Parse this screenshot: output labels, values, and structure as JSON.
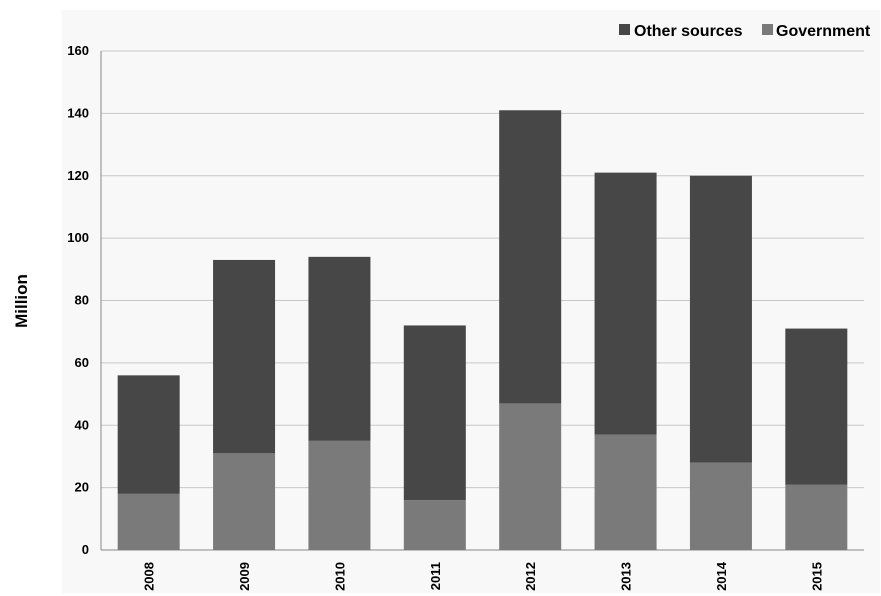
{
  "chart_data": {
    "type": "bar",
    "stacked": true,
    "title": "",
    "xlabel": "",
    "ylabel": "Million",
    "categories": [
      "2008",
      "2009",
      "2010",
      "2011",
      "2012",
      "2013",
      "2014",
      "2015"
    ],
    "series": [
      {
        "name": "Government",
        "color": "#7a7a7a",
        "values": [
          18,
          31,
          35,
          16,
          47,
          37,
          28,
          21
        ]
      },
      {
        "name": "Other sources",
        "color": "#474747",
        "values": [
          38,
          62,
          59,
          56,
          94,
          84,
          92,
          50
        ]
      }
    ],
    "legend_order": [
      "Other sources",
      "Government"
    ],
    "ylim": [
      0,
      160
    ],
    "yticks": [
      0,
      20,
      40,
      60,
      80,
      100,
      120,
      140,
      160
    ],
    "grid": "horizontal",
    "legend_position": "top-right"
  }
}
